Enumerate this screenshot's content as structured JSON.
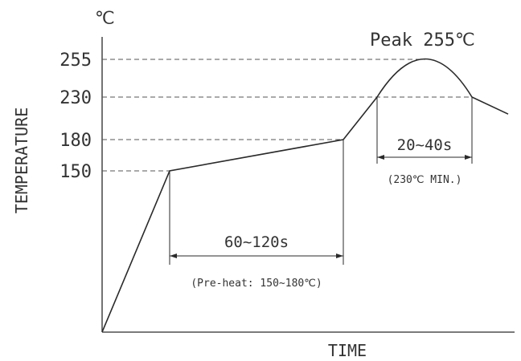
{
  "chart_data": {
    "type": "line",
    "title": "",
    "unit_label": "℃",
    "xlabel": "TIME",
    "ylabel": "TEMPERATURE",
    "y_ticks": [
      150,
      180,
      230,
      255
    ],
    "y_tick_labels": [
      "150",
      "180",
      "230",
      "255"
    ],
    "peak_label": "Peak 255℃",
    "profile_points": [
      {
        "t": 0,
        "temp": 25
      },
      {
        "t": 1,
        "temp": 150
      },
      {
        "t": 3,
        "temp": 180
      },
      {
        "t": 3.55,
        "temp": 230
      },
      {
        "t": 3.9,
        "temp": 255
      },
      {
        "t": 4.25,
        "temp": 230
      },
      {
        "t": 4.5,
        "temp": 210
      }
    ],
    "annotations": {
      "preheat_time": "60~120s",
      "preheat_note": "(Pre-heat: 150~180℃)",
      "reflow_time": "20~40s",
      "reflow_note": "(230℃ MIN.)"
    },
    "grid": false,
    "legend": "none"
  }
}
